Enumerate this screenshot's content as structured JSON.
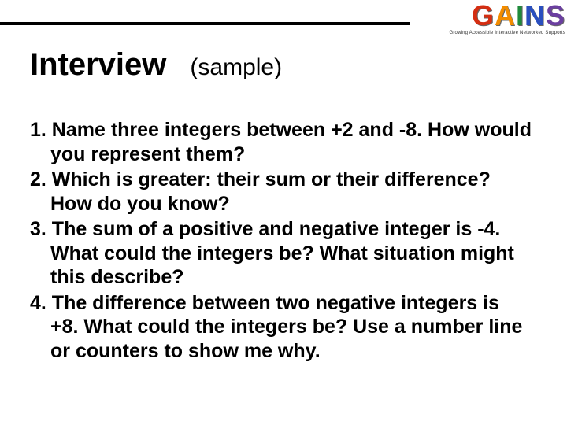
{
  "branding": {
    "logo_letters": {
      "g": "G",
      "a": "A",
      "i": "I",
      "n": "N",
      "s": "S"
    },
    "tagline": "Growing Accessible Interactive Networked Supports"
  },
  "header": {
    "title": "Interview",
    "subtitle": "(sample)"
  },
  "questions": [
    "1. Name three integers between +2 and -8. How would you represent them?",
    "2. Which is greater: their sum or their difference? How do you know?",
    "3. The sum of a positive and negative integer is -4. What could the integers be? What situation might this describe?",
    "4. The difference between two negative integers is +8. What could the integers be? Use a number line or counters to show me why."
  ],
  "styles": {
    "rule_color": "#000000",
    "title_fontsize": 40,
    "subtitle_fontsize": 30,
    "body_fontsize": 25,
    "background": "#ffffff",
    "logo_colors": {
      "g": "#d42e12",
      "a": "#f28c00",
      "i": "#1f8a3b",
      "n": "#2a4fbf",
      "s": "#6b3fa0"
    }
  }
}
